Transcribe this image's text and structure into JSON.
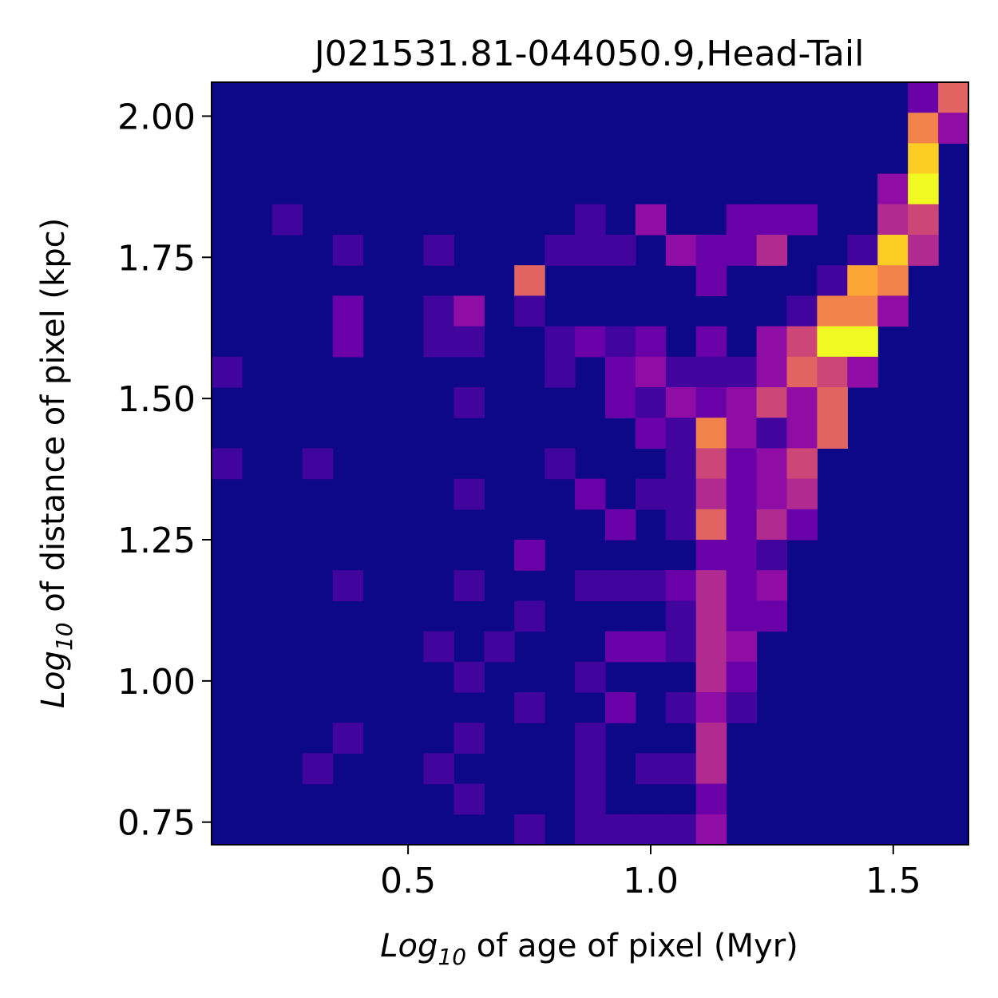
{
  "chart_data": {
    "type": "heatmap",
    "title": "J021531.81-044050.9,Head-Tail",
    "xlabel": {
      "prefix": "Log",
      "sub": "10",
      "suffix": " of age of pixel (Myr)"
    },
    "ylabel": {
      "prefix": "Log",
      "sub": "10",
      "suffix": " of distance of pixel (kpc)"
    },
    "xlim": [
      0.095,
      1.655
    ],
    "ylim": [
      0.71,
      2.06
    ],
    "xticks": [
      0.5,
      1.0,
      1.5
    ],
    "xtick_labels": [
      "0.5",
      "1.0",
      "1.5"
    ],
    "yticks": [
      0.75,
      1.0,
      1.25,
      1.5,
      1.75,
      2.0
    ],
    "ytick_labels": [
      "0.75",
      "1.00",
      "1.25",
      "1.50",
      "1.75",
      "2.00"
    ],
    "grid": false,
    "colormap": "plasma",
    "vmax": 10,
    "background_color": "#0d0887",
    "cols": 25,
    "rows": 25,
    "cells": [
      [
        0,
        24,
        23,
        2
      ],
      [
        0,
        24,
        24,
        6
      ],
      [
        0,
        23,
        23,
        7
      ],
      [
        0,
        23,
        24,
        3
      ],
      [
        0,
        22,
        23,
        9
      ],
      [
        0,
        21,
        22,
        3
      ],
      [
        0,
        21,
        23,
        10
      ],
      [
        0,
        20,
        2,
        1
      ],
      [
        0,
        20,
        12,
        1
      ],
      [
        0,
        20,
        14,
        3
      ],
      [
        0,
        20,
        17,
        2
      ],
      [
        0,
        20,
        18,
        2
      ],
      [
        0,
        20,
        19,
        2
      ],
      [
        0,
        20,
        22,
        4
      ],
      [
        0,
        20,
        23,
        5
      ],
      [
        0,
        19,
        4,
        1
      ],
      [
        0,
        19,
        7,
        1
      ],
      [
        0,
        19,
        11,
        1
      ],
      [
        0,
        19,
        12,
        1
      ],
      [
        0,
        19,
        13,
        1
      ],
      [
        0,
        19,
        15,
        3
      ],
      [
        0,
        19,
        16,
        2
      ],
      [
        0,
        19,
        17,
        2
      ],
      [
        0,
        19,
        18,
        4
      ],
      [
        0,
        19,
        21,
        1
      ],
      [
        0,
        19,
        22,
        9
      ],
      [
        0,
        19,
        23,
        4
      ],
      [
        0,
        18,
        10,
        6
      ],
      [
        0,
        18,
        16,
        2
      ],
      [
        0,
        18,
        20,
        1
      ],
      [
        0,
        18,
        21,
        8
      ],
      [
        0,
        18,
        22,
        7
      ],
      [
        0,
        17,
        4,
        2
      ],
      [
        0,
        17,
        7,
        1
      ],
      [
        0,
        17,
        8,
        3
      ],
      [
        0,
        17,
        10,
        1
      ],
      [
        0,
        17,
        19,
        1
      ],
      [
        0,
        17,
        20,
        7
      ],
      [
        0,
        17,
        21,
        7
      ],
      [
        0,
        17,
        22,
        3
      ],
      [
        0,
        16,
        4,
        2
      ],
      [
        0,
        16,
        7,
        1
      ],
      [
        0,
        16,
        8,
        1
      ],
      [
        0,
        16,
        11,
        1
      ],
      [
        0,
        16,
        12,
        2
      ],
      [
        0,
        16,
        13,
        1
      ],
      [
        0,
        16,
        14,
        2
      ],
      [
        0,
        16,
        16,
        2
      ],
      [
        0,
        16,
        18,
        3
      ],
      [
        0,
        16,
        19,
        5
      ],
      [
        0,
        16,
        20,
        10
      ],
      [
        0,
        16,
        21,
        10
      ],
      [
        0,
        15,
        0,
        1
      ],
      [
        0,
        15,
        11,
        1
      ],
      [
        0,
        15,
        13,
        2
      ],
      [
        0,
        15,
        14,
        3
      ],
      [
        0,
        15,
        15,
        1
      ],
      [
        0,
        15,
        16,
        1
      ],
      [
        0,
        15,
        17,
        1
      ],
      [
        0,
        15,
        18,
        3
      ],
      [
        0,
        15,
        19,
        6
      ],
      [
        0,
        15,
        20,
        5
      ],
      [
        0,
        15,
        21,
        3
      ],
      [
        0,
        14,
        8,
        1
      ],
      [
        0,
        14,
        13,
        2
      ],
      [
        0,
        14,
        14,
        1
      ],
      [
        0,
        14,
        15,
        3
      ],
      [
        0,
        14,
        16,
        2
      ],
      [
        0,
        14,
        17,
        3
      ],
      [
        0,
        14,
        18,
        5
      ],
      [
        0,
        14,
        19,
        3
      ],
      [
        0,
        14,
        20,
        6
      ],
      [
        0,
        13,
        14,
        2
      ],
      [
        0,
        13,
        15,
        1
      ],
      [
        0,
        13,
        16,
        7
      ],
      [
        0,
        13,
        17,
        3
      ],
      [
        0,
        13,
        18,
        1
      ],
      [
        0,
        13,
        19,
        3
      ],
      [
        0,
        13,
        20,
        6
      ],
      [
        0,
        12,
        0,
        1
      ],
      [
        0,
        12,
        3,
        1
      ],
      [
        0,
        12,
        11,
        1
      ],
      [
        0,
        12,
        15,
        1
      ],
      [
        0,
        12,
        16,
        5
      ],
      [
        0,
        12,
        17,
        2
      ],
      [
        0,
        12,
        18,
        3
      ],
      [
        0,
        12,
        19,
        5
      ],
      [
        0,
        11,
        8,
        1
      ],
      [
        0,
        11,
        12,
        2
      ],
      [
        0,
        11,
        14,
        1
      ],
      [
        0,
        11,
        15,
        1
      ],
      [
        0,
        11,
        16,
        4
      ],
      [
        0,
        11,
        17,
        2
      ],
      [
        0,
        11,
        18,
        3
      ],
      [
        0,
        11,
        19,
        4
      ],
      [
        0,
        10,
        13,
        2
      ],
      [
        0,
        10,
        15,
        1
      ],
      [
        0,
        10,
        16,
        6
      ],
      [
        0,
        10,
        17,
        2
      ],
      [
        0,
        10,
        18,
        4
      ],
      [
        0,
        10,
        19,
        2
      ],
      [
        0,
        9,
        10,
        2
      ],
      [
        0,
        9,
        16,
        2
      ],
      [
        0,
        9,
        17,
        2
      ],
      [
        0,
        9,
        18,
        1
      ],
      [
        0,
        8,
        4,
        1
      ],
      [
        0,
        8,
        8,
        1
      ],
      [
        0,
        8,
        12,
        1
      ],
      [
        0,
        8,
        13,
        1
      ],
      [
        0,
        8,
        14,
        1
      ],
      [
        0,
        8,
        15,
        2
      ],
      [
        0,
        8,
        16,
        4
      ],
      [
        0,
        8,
        17,
        2
      ],
      [
        0,
        8,
        18,
        3
      ],
      [
        0,
        7,
        10,
        1
      ],
      [
        0,
        7,
        15,
        1
      ],
      [
        0,
        7,
        16,
        4
      ],
      [
        0,
        7,
        17,
        2
      ],
      [
        0,
        7,
        18,
        2
      ],
      [
        0,
        6,
        7,
        1
      ],
      [
        0,
        6,
        9,
        1
      ],
      [
        0,
        6,
        13,
        2
      ],
      [
        0,
        6,
        14,
        2
      ],
      [
        0,
        6,
        15,
        1
      ],
      [
        0,
        6,
        16,
        4
      ],
      [
        0,
        6,
        17,
        3
      ],
      [
        0,
        5,
        8,
        1
      ],
      [
        0,
        5,
        12,
        1
      ],
      [
        0,
        5,
        16,
        4
      ],
      [
        0,
        5,
        17,
        2
      ],
      [
        0,
        4,
        10,
        1
      ],
      [
        0,
        4,
        13,
        2
      ],
      [
        0,
        4,
        15,
        1
      ],
      [
        0,
        4,
        16,
        3
      ],
      [
        0,
        4,
        17,
        1
      ],
      [
        0,
        3,
        4,
        1
      ],
      [
        0,
        3,
        8,
        1
      ],
      [
        0,
        3,
        12,
        1
      ],
      [
        0,
        3,
        16,
        4
      ],
      [
        0,
        2,
        3,
        1
      ],
      [
        0,
        2,
        7,
        1
      ],
      [
        0,
        2,
        12,
        1
      ],
      [
        0,
        2,
        14,
        1
      ],
      [
        0,
        2,
        15,
        1
      ],
      [
        0,
        2,
        16,
        4
      ],
      [
        0,
        1,
        8,
        1
      ],
      [
        0,
        1,
        12,
        1
      ],
      [
        0,
        1,
        16,
        2
      ],
      [
        0,
        0,
        10,
        1
      ],
      [
        0,
        0,
        12,
        1
      ],
      [
        0,
        0,
        13,
        1
      ],
      [
        0,
        0,
        14,
        1
      ],
      [
        0,
        0,
        15,
        1
      ],
      [
        0,
        0,
        16,
        3
      ]
    ]
  }
}
